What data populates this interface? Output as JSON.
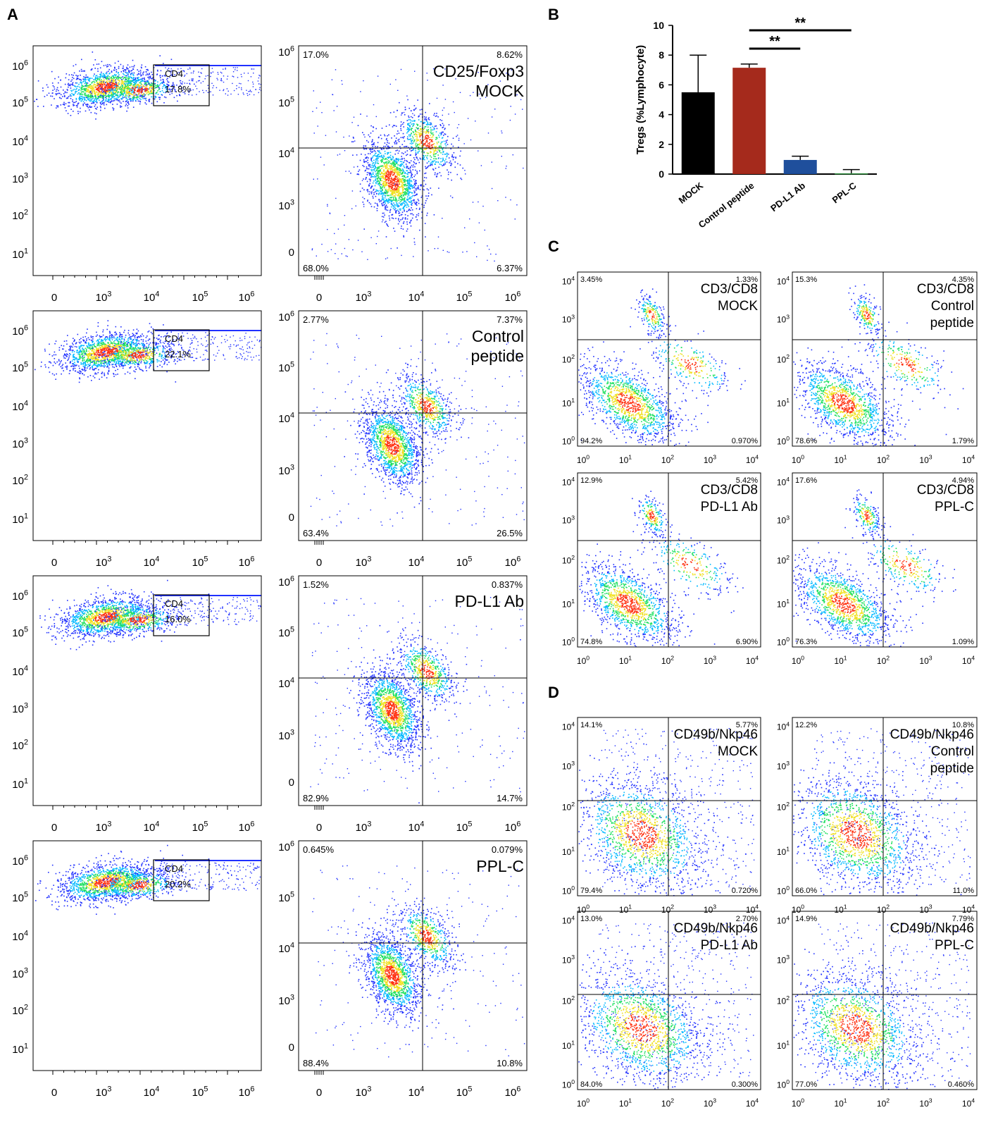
{
  "panel_letters": [
    "A",
    "B",
    "C",
    "D"
  ],
  "panel_a": {
    "rows": [
      {
        "cd4_gate": {
          "label": "CD4",
          "percent": "17.8%"
        },
        "treg": {
          "label_lines": [
            "CD25/Foxp3",
            "MOCK"
          ],
          "q_ul": "17.0%",
          "q_ur": "8.62%",
          "q_ll": "68.0%",
          "q_lr": "6.37%"
        }
      },
      {
        "cd4_gate": {
          "label": "CD4",
          "percent": "22.1%"
        },
        "treg": {
          "label_lines": [
            "Control",
            "peptide"
          ],
          "q_ul": "2.77%",
          "q_ur": "7.37%",
          "q_ll": "63.4%",
          "q_lr": "26.5%"
        }
      },
      {
        "cd4_gate": {
          "label": "CD4",
          "percent": "16.0%"
        },
        "treg": {
          "label_lines": [
            "PD-L1 Ab"
          ],
          "q_ul": "1.52%",
          "q_ur": "0.837%",
          "q_ll": "82.9%",
          "q_lr": "14.7%"
        }
      },
      {
        "cd4_gate": {
          "label": "CD4",
          "percent": "20.2%"
        },
        "treg": {
          "label_lines": [
            "PPL-C"
          ],
          "q_ul": "0.645%",
          "q_ur": "0.079%",
          "q_ll": "88.4%",
          "q_lr": "10.8%"
        }
      }
    ],
    "axis_ticks": {
      "x": [
        {
          "b": "0",
          "e": ""
        },
        {
          "b": "10",
          "e": "3"
        },
        {
          "b": "10",
          "e": "4"
        },
        {
          "b": "10",
          "e": "5"
        },
        {
          "b": "10",
          "e": "6"
        }
      ],
      "y_left": [
        {
          "b": "10",
          "e": "6"
        },
        {
          "b": "10",
          "e": "5"
        },
        {
          "b": "10",
          "e": "4"
        },
        {
          "b": "10",
          "e": "3"
        },
        {
          "b": "10",
          "e": "2"
        },
        {
          "b": "10",
          "e": "1"
        }
      ],
      "y_right": [
        {
          "b": "10",
          "e": "6"
        },
        {
          "b": "10",
          "e": "5"
        },
        {
          "b": "10",
          "e": "4"
        },
        {
          "b": "10",
          "e": "3"
        },
        {
          "b": "0",
          "e": ""
        }
      ]
    }
  },
  "panel_c": {
    "panels": [
      {
        "label_lines": [
          "CD3/CD8",
          "MOCK"
        ],
        "q_ul": "3.45%",
        "q_ur": "1.33%",
        "q_ll": "94.2%",
        "q_lr": "0.970%"
      },
      {
        "label_lines": [
          "CD3/CD8",
          "Control",
          "peptide"
        ],
        "q_ul": "15.3%",
        "q_ur": "4.35%",
        "q_ll": "78.6%",
        "q_lr": "1.79%"
      },
      {
        "label_lines": [
          "CD3/CD8",
          "PD-L1 Ab"
        ],
        "q_ul": "12.9%",
        "q_ur": "5.42%",
        "q_ll": "74.8%",
        "q_lr": "6.90%"
      },
      {
        "label_lines": [
          "CD3/CD8",
          "PPL-C"
        ],
        "q_ul": "17.6%",
        "q_ur": "4.94%",
        "q_ll": "76.3%",
        "q_lr": "1.09%"
      }
    ]
  },
  "panel_d": {
    "panels": [
      {
        "label_lines": [
          "CD49b/Nkp46",
          "MOCK"
        ],
        "q_ul": "14.1%",
        "q_ur": "5.77%",
        "q_ll": "79.4%",
        "q_lr": "0.720%"
      },
      {
        "label_lines": [
          "CD49b/Nkp46",
          "Control",
          "peptide"
        ],
        "q_ul": "12.2%",
        "q_ur": "10.8%",
        "q_ll": "66.0%",
        "q_lr": "11.0%"
      },
      {
        "label_lines": [
          "CD49b/Nkp46",
          "PD-L1 Ab"
        ],
        "q_ul": "13.0%",
        "q_ur": "2.70%",
        "q_ll": "84.0%",
        "q_lr": "0.300%"
      },
      {
        "label_lines": [
          "CD49b/Nkp46",
          "PPL-C"
        ],
        "q_ul": "14.9%",
        "q_ur": "7.79%",
        "q_ll": "77.0%",
        "q_lr": "0.460%"
      }
    ]
  },
  "small_axis_ticks": [
    {
      "b": "10",
      "e": "0"
    },
    {
      "b": "10",
      "e": "1"
    },
    {
      "b": "10",
      "e": "2"
    },
    {
      "b": "10",
      "e": "3"
    },
    {
      "b": "10",
      "e": "4"
    }
  ],
  "chart_data": {
    "type": "bar",
    "title": "",
    "xlabel": "",
    "ylabel": "Tregs (%Lymphocyte)",
    "ylim": [
      0,
      10
    ],
    "yticks": [
      "0",
      "2",
      "4",
      "6",
      "8",
      "10"
    ],
    "categories": [
      "MOCK",
      "Control peptide",
      "PD-L1 Ab",
      "PPL-C"
    ],
    "values": [
      5.5,
      7.15,
      0.95,
      0.05
    ],
    "errors": [
      2.5,
      0.25,
      0.25,
      0.25
    ],
    "colors": [
      "#000000",
      "#a52a1c",
      "#1f4f9c",
      "#2d8a3c"
    ],
    "significance": [
      {
        "from": "Control peptide",
        "to": "PPL-C",
        "label": "**"
      },
      {
        "from": "Control peptide",
        "to": "PD-L1 Ab",
        "label": "**"
      }
    ],
    "grid": false
  },
  "density_colors": [
    "#2030ff",
    "#00b8ff",
    "#1fe060",
    "#f0e020",
    "#ff3010"
  ]
}
